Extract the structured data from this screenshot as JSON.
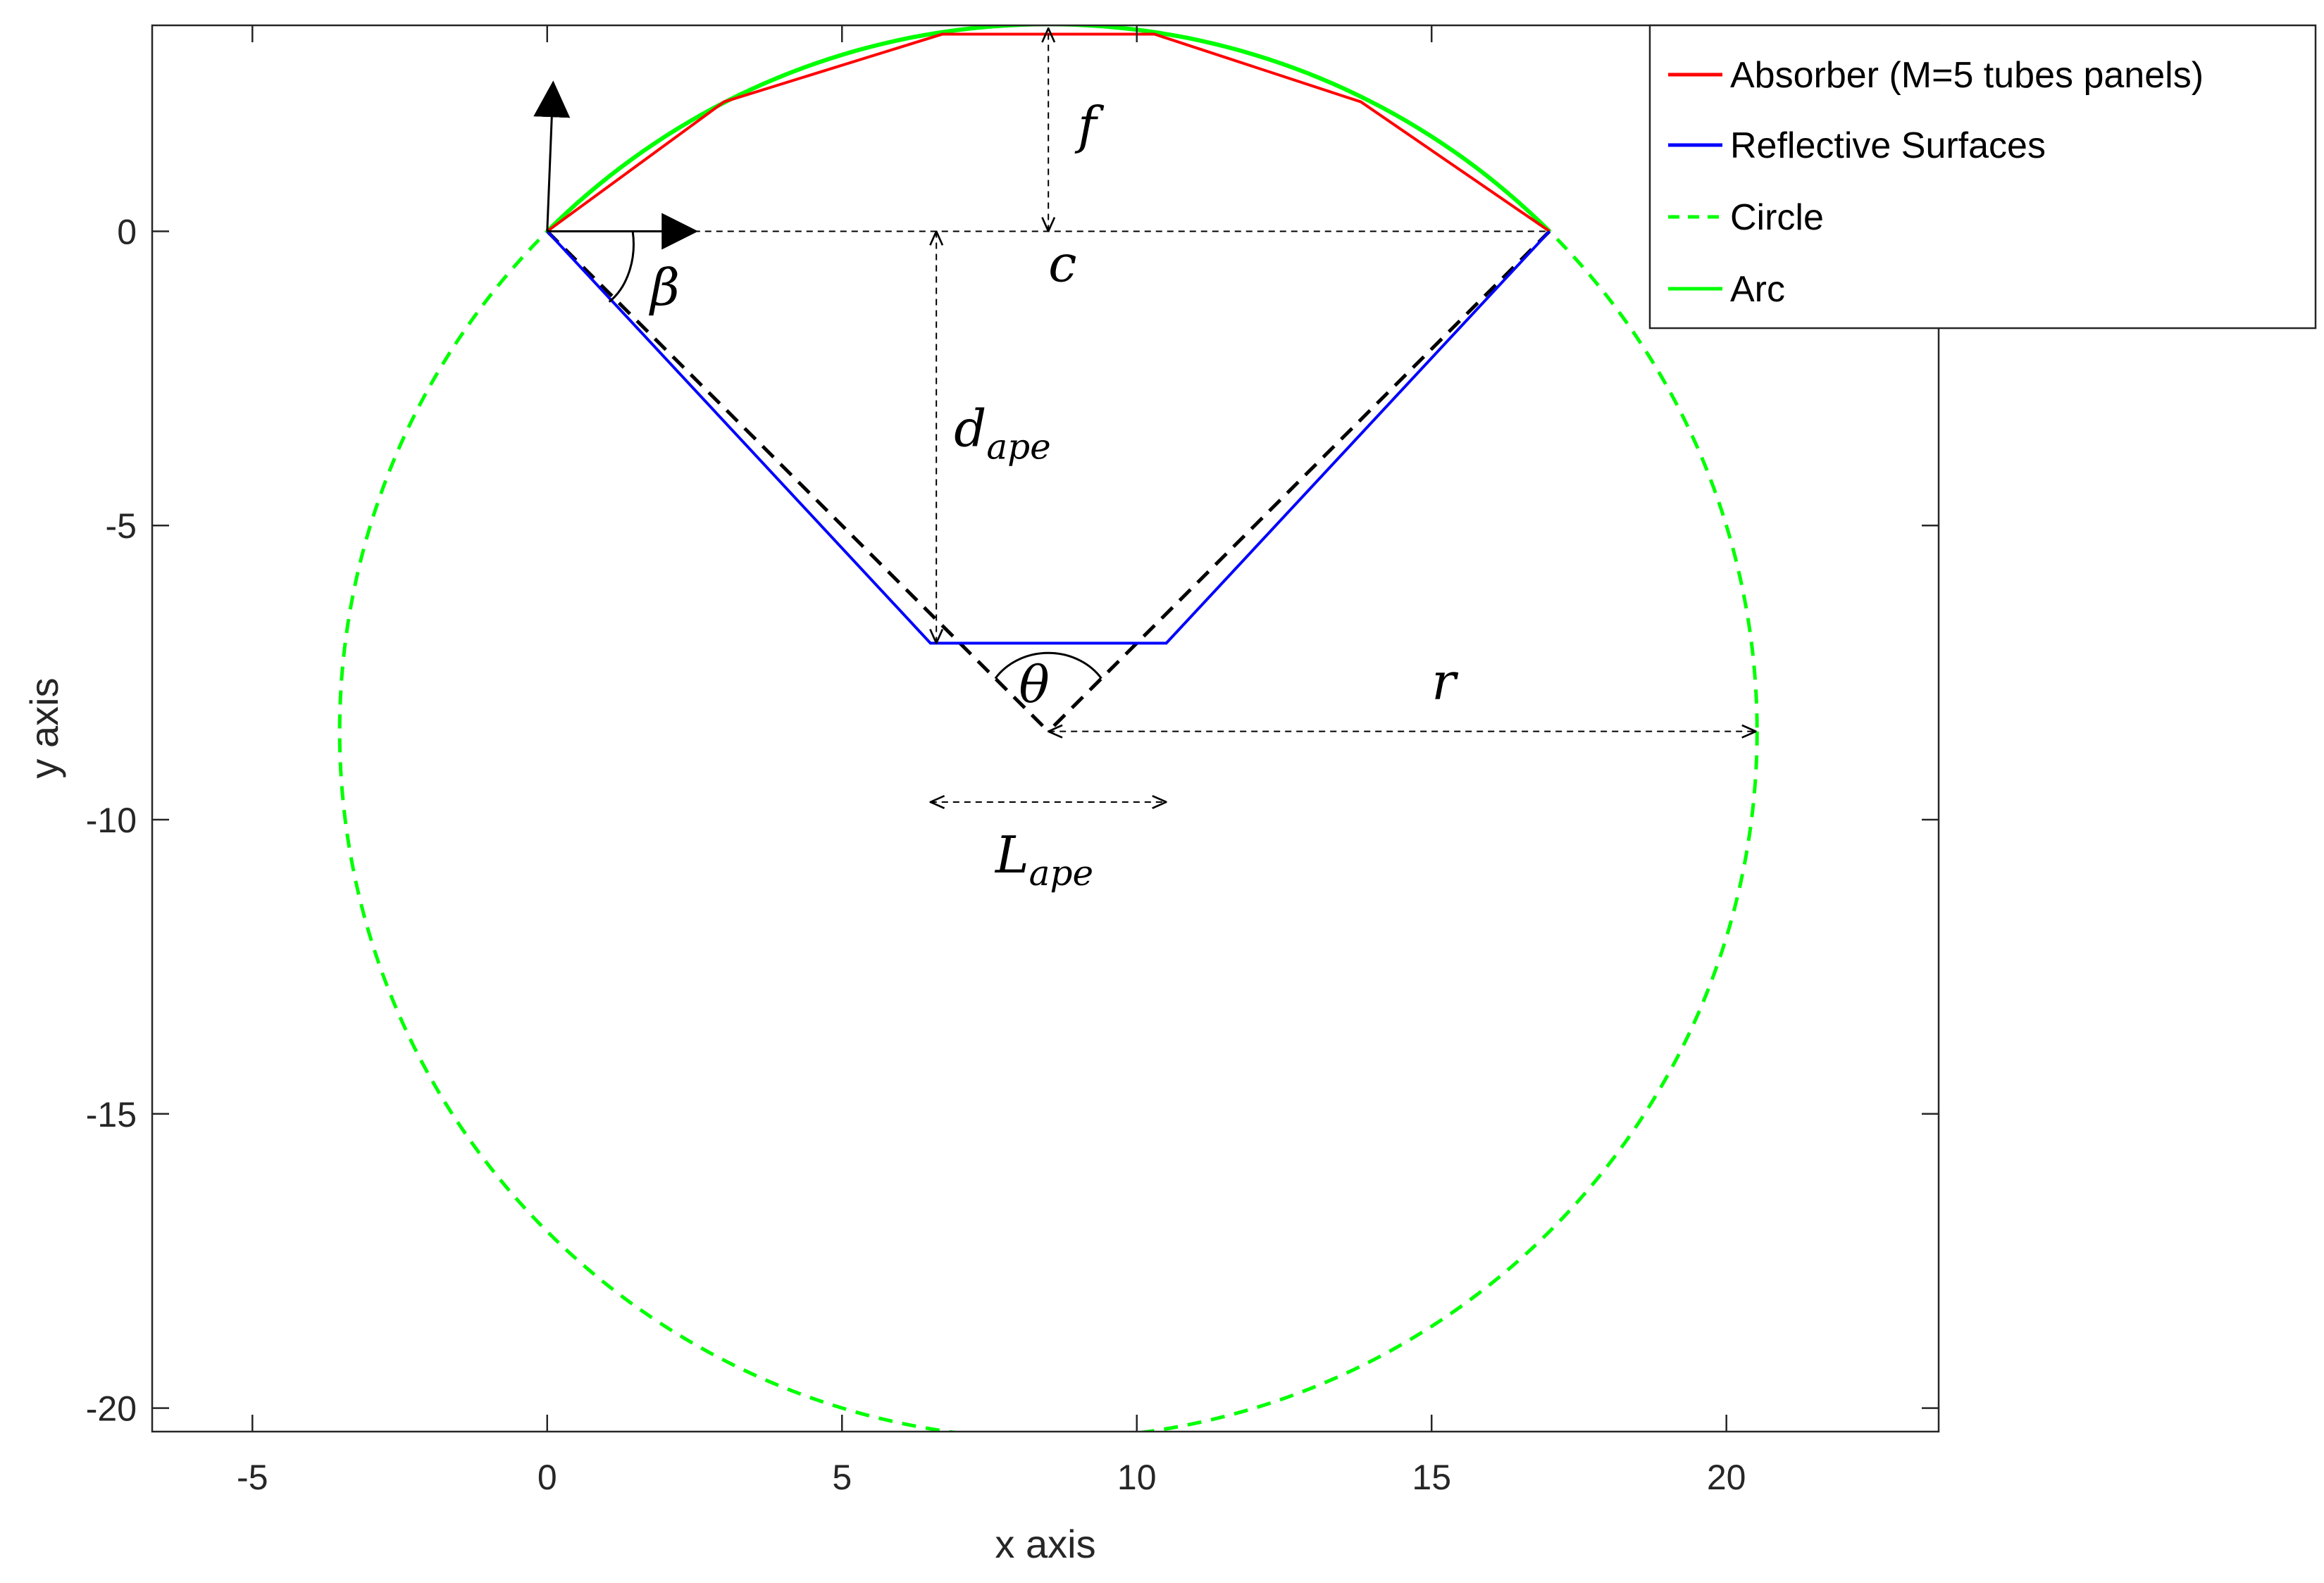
{
  "chart_data": {
    "type": "line",
    "xlabel": "x axis",
    "ylabel": "y axis",
    "xlim": [
      -6.7,
      23.6
    ],
    "ylim": [
      -20.4,
      3.5
    ],
    "x_ticks": [
      -5,
      0,
      5,
      10,
      15,
      20
    ],
    "y_ticks": [
      0,
      -5,
      -10,
      -15,
      -20
    ],
    "grid": false,
    "legend_position": "top-right",
    "series": [
      {
        "name": "Absorber (M=5 tubes panels)",
        "color": "#ff0000",
        "style": "solid",
        "points": [
          [
            0,
            0
          ],
          [
            3.0,
            2.2
          ],
          [
            6.7,
            3.35
          ],
          [
            10.3,
            3.35
          ],
          [
            13.8,
            2.2
          ],
          [
            17.0,
            0
          ]
        ]
      },
      {
        "name": "Reflective Surfaces",
        "color": "#0000ff",
        "style": "solid",
        "points": [
          [
            0,
            0
          ],
          [
            6.5,
            -7
          ],
          [
            10.5,
            -7
          ],
          [
            17.0,
            0
          ]
        ]
      },
      {
        "name": "Circle",
        "color": "#00ff00",
        "style": "dashed",
        "center": [
          8.5,
          -8.5
        ],
        "radius": 12.02
      },
      {
        "name": "Arc",
        "color": "#00ff00",
        "style": "solid",
        "center": [
          8.5,
          -8.5
        ],
        "radius": 12.02,
        "from_point": [
          0,
          0
        ],
        "to_point": [
          17.0,
          0
        ]
      }
    ],
    "annotations": {
      "f": "f",
      "c": "c",
      "beta": "β",
      "d_ape_main": "d",
      "d_ape_sub": "ape",
      "theta": "θ",
      "r": "r",
      "L_ape_main": "L",
      "L_ape_sub": "ape"
    }
  }
}
